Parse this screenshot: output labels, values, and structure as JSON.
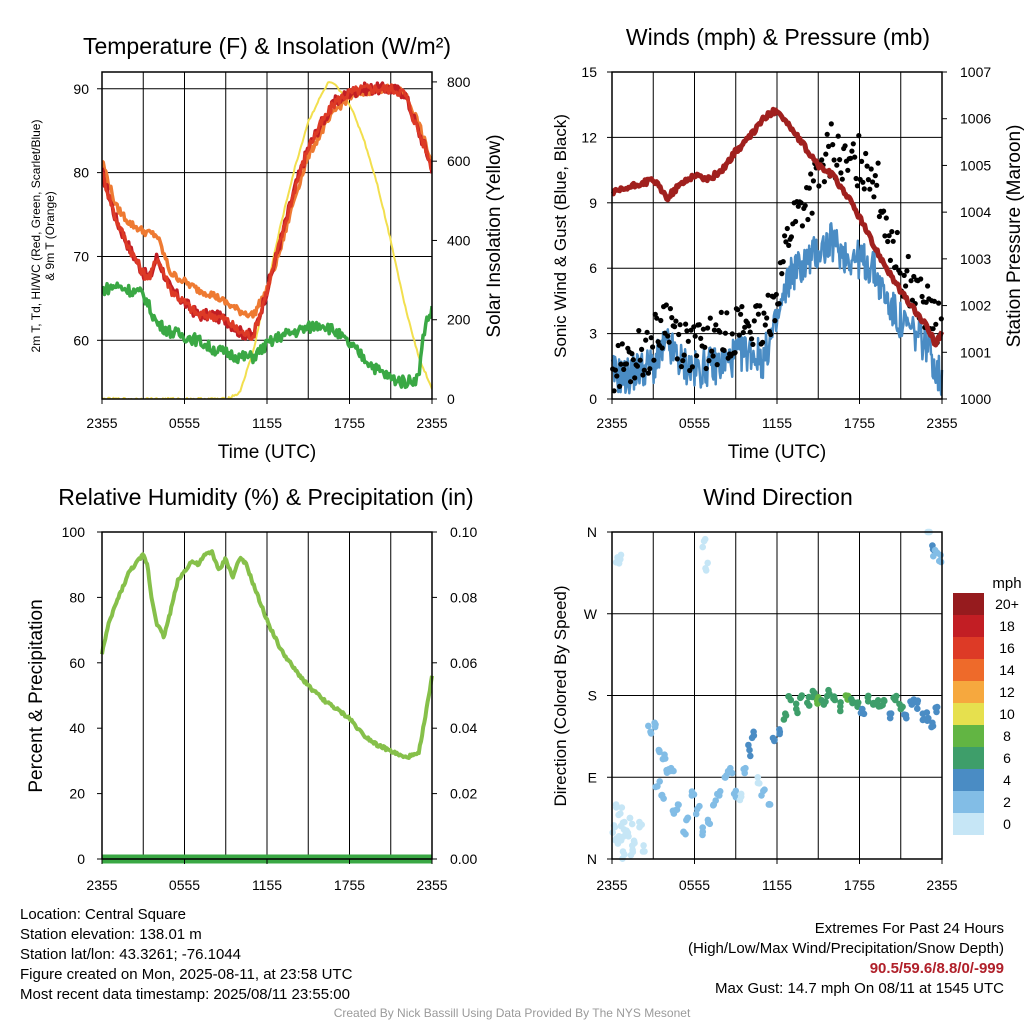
{
  "panels": {
    "temp": {
      "title": "Temperature (F) & Insolation (W/m²)",
      "ylabel_left_lines": [
        "2m T, Td, HI/WC (Red, Green, Scarlet/Blue)",
        "& 9m T (Orange)"
      ],
      "ylabel_right": "Solar Insolation (Yellow)",
      "xlabel": "Time (UTC)",
      "x_ticks": [
        "2355",
        "0555",
        "1155",
        "1755",
        "2355"
      ],
      "y_ticks_left": [
        "60",
        "70",
        "80",
        "90"
      ],
      "y_ticks_right": [
        "0",
        "200",
        "400",
        "600",
        "800"
      ]
    },
    "wind": {
      "title": "Winds (mph) & Pressure (mb)",
      "ylabel_left": "Sonic Wind & Gust (Blue, Black)",
      "ylabel_right": "Station Pressure (Maroon)",
      "xlabel": "Time (UTC)",
      "x_ticks": [
        "2355",
        "0555",
        "1155",
        "1755",
        "2355"
      ],
      "y_ticks_left": [
        "0",
        "3",
        "6",
        "9",
        "12",
        "15"
      ],
      "y_ticks_right": [
        "1000",
        "1001",
        "1002",
        "1003",
        "1004",
        "1005",
        "1006",
        "1007"
      ]
    },
    "rh": {
      "title": "Relative Humidity (%) & Precipitation (in)",
      "ylabel_left": "Percent & Precipitation",
      "x_ticks": [
        "2355",
        "0555",
        "1155",
        "1755",
        "2355"
      ],
      "y_ticks_left": [
        "0",
        "20",
        "40",
        "60",
        "80",
        "100"
      ],
      "y_ticks_right": [
        "0.00",
        "0.02",
        "0.04",
        "0.06",
        "0.08",
        "0.10"
      ]
    },
    "wdir": {
      "title": "Wind Direction",
      "ylabel_left": "Direction (Colored By Speed)",
      "x_ticks": [
        "2355",
        "0555",
        "1155",
        "1755",
        "2355"
      ],
      "y_ticks_left": [
        "N",
        "E",
        "S",
        "W",
        "N"
      ],
      "colorbar_title": "mph",
      "colorbar_labels": [
        "0",
        "2",
        "4",
        "6",
        "8",
        "10",
        "12",
        "14",
        "16",
        "18",
        "20+"
      ],
      "colorbar_colors": [
        "#c6e6f6",
        "#82bde6",
        "#4a8cc4",
        "#3e9e6a",
        "#62b543",
        "#e6e04e",
        "#f6a83e",
        "#ee6a2a",
        "#dd3a26",
        "#c21e24",
        "#961b1e"
      ]
    }
  },
  "info": {
    "location": "Location: Central Square",
    "elevation": "Station elevation: 138.01 m",
    "latlon": "Station lat/lon: 43.3261; -76.1044",
    "created": "Figure created on Mon, 2025-08-11, at 23:58 UTC",
    "recent": "Most recent data timestamp: 2025/08/11 23:55:00",
    "extremes_title": "Extremes For Past 24 Hours",
    "extremes_sub": "(High/Low/Max Wind/Precipitation/Snow Depth)",
    "extremes_values": "90.5/59.6/8.8/0/-999",
    "max_gust": "Max Gust: 14.7 mph On 08/11 at 1545 UTC",
    "credit": "Created By Nick Bassill Using Data Provided By The NYS Mesonet"
  },
  "chart_data": [
    {
      "type": "line",
      "title": "Temperature (F) & Insolation (W/m²)",
      "xlabel": "Time (UTC)",
      "ylabel": "2m T, Td, HI/WC (Red, Green, Scarlet/Blue) & 9m T (Orange)",
      "y2label": "Solar Insolation (Yellow)",
      "x_unit": "hours after 2355 UTC",
      "xlim": [
        0,
        24
      ],
      "ylim": [
        53,
        92
      ],
      "y2lim": [
        0,
        825
      ],
      "series": [
        {
          "name": "2m T",
          "color": "#c21e24",
          "axis": "left",
          "x": [
            0,
            1,
            2,
            3,
            3.5,
            4,
            5,
            6,
            7,
            8,
            9,
            10,
            11,
            12,
            13,
            14,
            15,
            16,
            17,
            18,
            19,
            20,
            21,
            22,
            23,
            23.5,
            24
          ],
          "y": [
            80,
            74.5,
            71,
            68,
            67.5,
            70,
            66,
            64.5,
            63,
            63,
            62.5,
            61,
            60.5,
            66,
            72,
            78,
            83,
            86,
            88.5,
            89.5,
            90,
            90,
            90,
            89.5,
            85,
            83,
            80.5
          ]
        },
        {
          "name": "HI/WC",
          "color": "#dd3a26",
          "axis": "left",
          "x": [
            0,
            1,
            2,
            3,
            3.5,
            4,
            5,
            6,
            7,
            8,
            9,
            10,
            11,
            12,
            13,
            14,
            15,
            16,
            17,
            18,
            19,
            20,
            21,
            22,
            23,
            23.5,
            24
          ],
          "y": [
            80,
            74.5,
            71,
            68,
            67.5,
            70,
            66,
            64.5,
            63,
            63,
            62.5,
            61,
            60.5,
            66,
            72,
            78,
            83,
            86,
            88.5,
            89.5,
            90,
            90,
            90,
            89.5,
            85,
            83,
            80.5
          ]
        },
        {
          "name": "9m T",
          "color": "#ee7a32",
          "axis": "left",
          "x": [
            0,
            1,
            2,
            3,
            4,
            5,
            6,
            7,
            8,
            9,
            10,
            11,
            12,
            13,
            14,
            15,
            16,
            17,
            18,
            19,
            20,
            21,
            22,
            23,
            24
          ],
          "y": [
            81.5,
            76,
            74,
            73,
            72.5,
            68,
            67,
            66,
            65.5,
            64.5,
            63.5,
            63,
            66,
            71,
            77,
            82,
            85,
            87.5,
            89,
            89.5,
            90,
            90,
            89.5,
            86,
            81
          ]
        },
        {
          "name": "2m Td",
          "color": "#3aa844",
          "axis": "left",
          "x": [
            0,
            1,
            2,
            3,
            4,
            5,
            6,
            7,
            8,
            9,
            10,
            11,
            12,
            13,
            14,
            15,
            16,
            17,
            18,
            19,
            20,
            21,
            22,
            23,
            23.5,
            24
          ],
          "y": [
            66,
            66.5,
            66,
            65.5,
            62,
            61,
            60.5,
            60,
            59,
            58.5,
            58,
            58,
            59.5,
            60.5,
            61,
            61.5,
            62,
            61,
            59.5,
            58,
            56.5,
            55.5,
            55,
            55.5,
            62,
            63.5
          ]
        },
        {
          "name": "Solar Insolation",
          "color": "#f2df4e",
          "axis": "right",
          "x": [
            0,
            9,
            10,
            11,
            12,
            13,
            14,
            15,
            16,
            16.5,
            17,
            18,
            19,
            20,
            21,
            22,
            23,
            24
          ],
          "y": [
            0,
            0,
            15,
            120,
            280,
            440,
            580,
            700,
            770,
            800,
            790,
            745,
            660,
            545,
            400,
            240,
            110,
            25
          ]
        }
      ]
    },
    {
      "type": "line",
      "title": "Winds (mph) & Pressure (mb)",
      "xlabel": "Time (UTC)",
      "ylabel": "Sonic Wind & Gust (Blue, Black)",
      "y2label": "Station Pressure (Maroon)",
      "x_unit": "hours after 2355 UTC",
      "xlim": [
        0,
        24
      ],
      "ylim": [
        0,
        15
      ],
      "y2lim": [
        1000,
        1007
      ],
      "series": [
        {
          "name": "Sonic Wind",
          "color": "#4a8cc4",
          "axis": "left",
          "x": [
            0,
            1,
            2,
            3,
            4,
            5,
            6,
            7,
            8,
            9,
            10,
            11,
            12,
            13,
            14,
            15,
            16,
            17,
            18,
            19,
            20,
            21,
            22,
            23,
            23.5,
            24
          ],
          "y": [
            1.2,
            1.0,
            1.4,
            1.5,
            2.5,
            1.7,
            1.3,
            1.5,
            1.6,
            2.0,
            2.2,
            1.8,
            3.5,
            5.8,
            6.2,
            6.8,
            7.2,
            6.6,
            6.4,
            6.0,
            4.5,
            3.5,
            3.0,
            2.5,
            1.5,
            0.8
          ]
        },
        {
          "name": "Gust",
          "color": "#000000",
          "axis": "left",
          "x": [
            0,
            1,
            2,
            3,
            4,
            5,
            6,
            7,
            8,
            9,
            10,
            11,
            12,
            13,
            14,
            15,
            16,
            17,
            18,
            19,
            20,
            21,
            22,
            23,
            23.5,
            24
          ],
          "y": [
            1.4,
            1.5,
            2.0,
            2.5,
            3.8,
            2.7,
            2.3,
            2.5,
            2.8,
            3.3,
            3.5,
            3.0,
            5.0,
            8.0,
            9.0,
            10.0,
            11.5,
            10.5,
            11.0,
            10.5,
            8.0,
            6.0,
            5.0,
            4.0,
            3.5,
            3.0
          ]
        },
        {
          "name": "Station Pressure",
          "color": "#a0201e",
          "axis": "right",
          "x": [
            0,
            1,
            2,
            3,
            4,
            5,
            6,
            7,
            8,
            9,
            10,
            11,
            12,
            12.5,
            13,
            14,
            15,
            16,
            17,
            18,
            19,
            20,
            21,
            22,
            23,
            23.5,
            24
          ],
          "y": [
            1004.4,
            1004.5,
            1004.6,
            1004.7,
            1004.3,
            1004.6,
            1004.8,
            1004.7,
            1004.9,
            1005.3,
            1005.6,
            1006.0,
            1006.2,
            1006.0,
            1005.8,
            1005.4,
            1005.0,
            1004.8,
            1004.4,
            1003.9,
            1003.3,
            1002.8,
            1002.3,
            1001.9,
            1001.5,
            1001.2,
            1001.4
          ]
        }
      ]
    },
    {
      "type": "line",
      "title": "Relative Humidity (%) & Precipitation (in)",
      "ylabel": "Percent & Precipitation",
      "x_unit": "hours after 2355 UTC",
      "xlim": [
        0,
        24
      ],
      "ylim": [
        0,
        100
      ],
      "y2lim": [
        0,
        0.1
      ],
      "series": [
        {
          "name": "Relative Humidity",
          "color": "#86c04a",
          "axis": "left",
          "x": [
            0,
            0.5,
            1,
            2,
            3,
            3.3,
            3.6,
            4,
            4.5,
            5,
            5.5,
            6,
            6.5,
            7,
            7.5,
            8,
            8.5,
            9,
            9.5,
            10,
            10.5,
            11,
            12,
            13,
            14,
            15,
            16,
            17,
            18,
            19,
            20,
            21,
            22,
            23,
            23.5,
            24
          ],
          "y": [
            63,
            72,
            78,
            88,
            93,
            90,
            80,
            72,
            68,
            76,
            85,
            88,
            91,
            90,
            93,
            94,
            88,
            92,
            86,
            92,
            90,
            84,
            73,
            64,
            58,
            53,
            49,
            46,
            43,
            38,
            35,
            33,
            31,
            32,
            43,
            56
          ]
        },
        {
          "name": "Precipitation",
          "color": "#3aa844",
          "axis": "right",
          "x": [
            0,
            24
          ],
          "y": [
            0,
            0
          ]
        }
      ]
    },
    {
      "type": "scatter",
      "title": "Wind Direction",
      "ylabel": "Direction (Colored By Speed)",
      "x_unit": "hours after 2355 UTC",
      "y_unit": "degrees",
      "xlim": [
        0,
        24
      ],
      "ylim": [
        0,
        360
      ],
      "series": [
        {
          "name": "Direction",
          "color_by": "speed (mph)",
          "x": [
            0.2,
            0.5,
            0.8,
            1.0,
            1.3,
            1.6,
            2.0,
            2.3,
            1.2,
            1.5,
            0.6,
            0.9,
            0.3,
            0.4,
            2.8,
            3.1,
            3.4,
            3.7,
            4.0,
            4.3,
            3.3,
            3.6,
            4.5,
            4.8,
            5.2,
            5.5,
            5.8,
            6.2,
            6.6,
            7.0,
            7.4,
            7.8,
            8.2,
            8.6,
            9.0,
            9.3,
            9.7,
            10.0,
            10.3,
            10.6,
            11.0,
            11.4,
            11.8,
            12.2,
            12.6,
            13.0,
            13.4,
            13.8,
            14.2,
            14.6,
            15.0,
            15.4,
            15.8,
            16.2,
            16.6,
            17.0,
            17.4,
            17.8,
            18.2,
            18.6,
            19.0,
            19.4,
            19.8,
            20.2,
            20.6,
            21.0,
            21.4,
            21.8,
            22.2,
            22.6,
            23.0,
            23.3,
            23.6,
            0.4,
            0.6,
            6.7,
            6.8,
            23.1,
            23.3,
            23.5,
            23.8
          ],
          "y": [
            35,
            25,
            40,
            30,
            45,
            20,
            35,
            15,
            25,
            10,
            50,
            5,
            60,
            20,
            140,
            150,
            120,
            110,
            95,
            100,
            80,
            70,
            50,
            60,
            30,
            45,
            70,
            55,
            30,
            40,
            60,
            70,
            90,
            100,
            75,
            65,
            100,
            120,
            140,
            90,
            75,
            60,
            130,
            140,
            160,
            175,
            165,
            180,
            172,
            185,
            178,
            170,
            182,
            175,
            168,
            180,
            176,
            172,
            165,
            178,
            170,
            168,
            174,
            160,
            175,
            165,
            155,
            170,
            172,
            160,
            155,
            150,
            162,
            332,
            330,
            350,
            320,
            365,
            345,
            340,
            328
          ],
          "speed": [
            0.6,
            0.8,
            1.0,
            0.5,
            1.2,
            0.9,
            0.7,
            1.1,
            0.6,
            1.4,
            0.9,
            1.0,
            0.5,
            0.8,
            3.0,
            3.5,
            3.2,
            2.8,
            2.6,
            3.1,
            2.9,
            3.4,
            2.2,
            2.6,
            3.0,
            2.4,
            2.8,
            2.5,
            2.2,
            3.0,
            2.6,
            2.0,
            3.2,
            2.8,
            2.4,
            1.2,
            3.5,
            4.0,
            4.5,
            1.5,
            2.0,
            2.5,
            4.5,
            5.0,
            6.0,
            6.5,
            7.5,
            7.0,
            6.8,
            7.5,
            8.0,
            7.2,
            6.4,
            6.0,
            7.5,
            8.4,
            7.8,
            6.6,
            5.8,
            6.6,
            7.0,
            7.8,
            6.2,
            5.5,
            6.4,
            7.0,
            5.8,
            4.8,
            4.2,
            5.0,
            4.8,
            4.0,
            4.5,
            1.5,
            1.8,
            1.2,
            1.5,
            1.5,
            4.0,
            3.5,
            2.5
          ]
        }
      ]
    }
  ]
}
